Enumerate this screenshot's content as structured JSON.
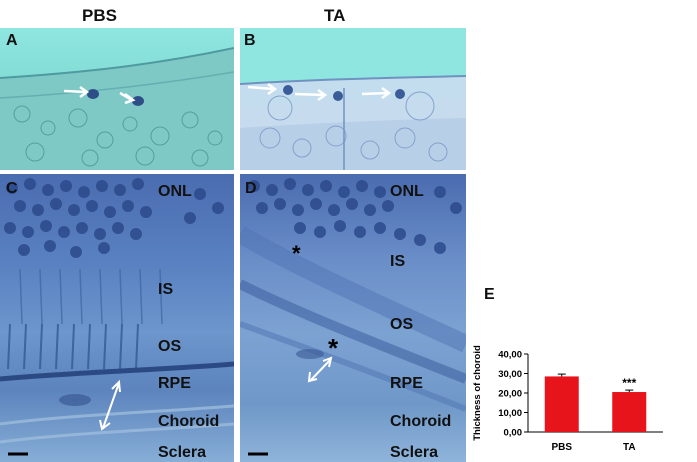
{
  "columns": {
    "left": "PBS",
    "right": "TA"
  },
  "panels": {
    "A": {
      "letter": "A"
    },
    "B": {
      "letter": "B"
    },
    "C": {
      "letter": "C",
      "labels": [
        "ONL",
        "IS",
        "OS",
        "RPE",
        "Choroid",
        "Sclera"
      ]
    },
    "D": {
      "letter": "D",
      "labels": [
        "ONL",
        "IS",
        "OS",
        "RPE",
        "Choroid",
        "Sclera"
      ],
      "marks": [
        "*",
        "*"
      ]
    }
  },
  "colors": {
    "histo_light": "#8fe6e0",
    "histo_dark": "#3e64a8",
    "bar": "#e8141c"
  },
  "chart_letter": "E",
  "chart_data": {
    "type": "bar",
    "categories": [
      "PBS",
      "TA"
    ],
    "values": [
      28.5,
      20.5
    ],
    "errors": [
      1.2,
      1.0
    ],
    "ylabel": "Thickness of choroid",
    "ylim": [
      0,
      40
    ],
    "yticks": [
      "0,00",
      "10,00",
      "20,00",
      "30,00",
      "40,00"
    ],
    "annotations": [
      "",
      "***"
    ],
    "grid": false,
    "color": "#e8141c"
  }
}
